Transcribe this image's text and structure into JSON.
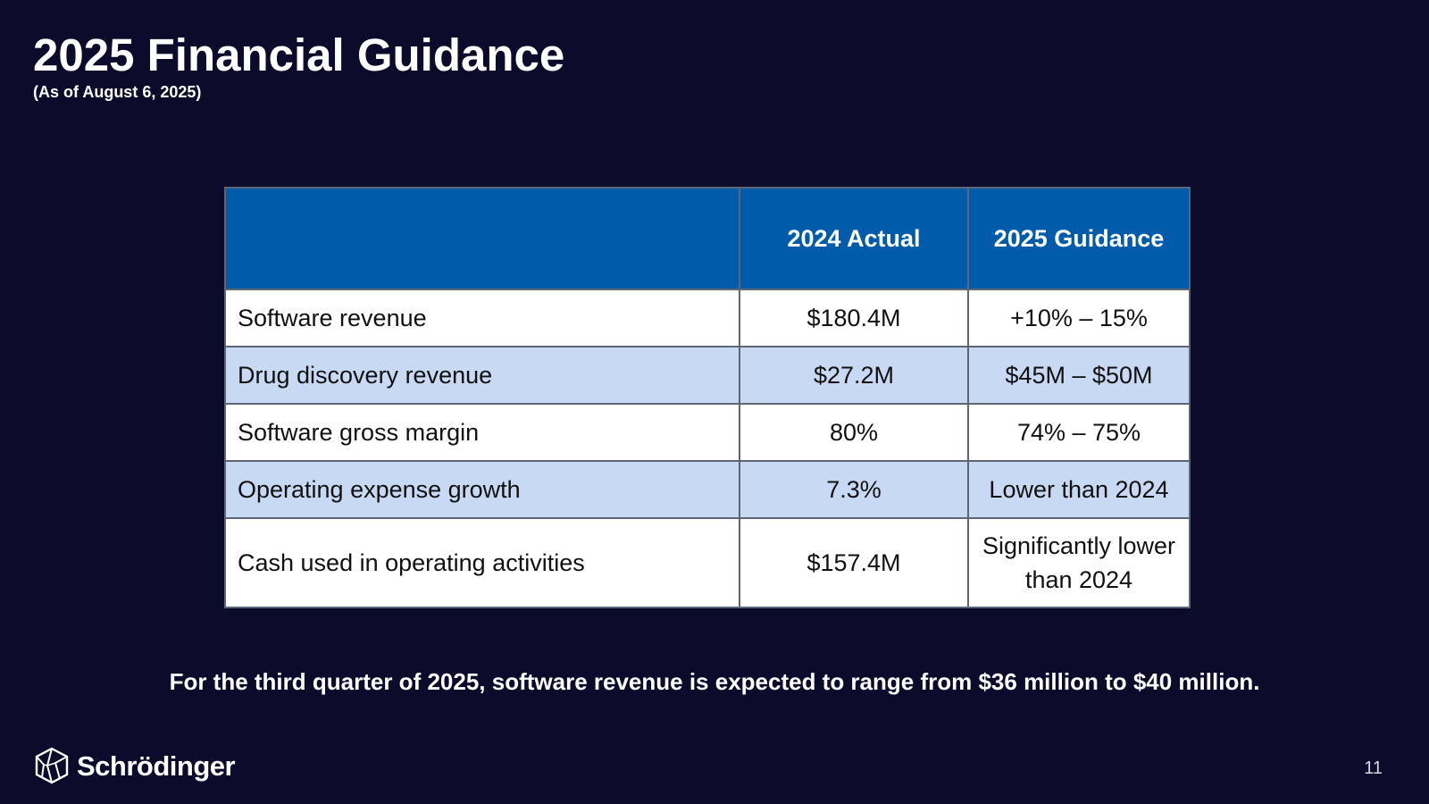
{
  "slide": {
    "title": "2025 Financial Guidance",
    "subtitle": "(As of August 6, 2025)",
    "footnote": "For the third quarter of 2025, software revenue is expected to range from $36 million to $40 million.",
    "page_number": "11"
  },
  "table": {
    "headers": [
      "",
      "2024 Actual",
      "2025 Guidance"
    ],
    "rows": [
      {
        "metric": "Software revenue",
        "actual": "$180.4M",
        "guidance": "+10% – 15%"
      },
      {
        "metric": "Drug discovery revenue",
        "actual": "$27.2M",
        "guidance": "$45M – $50M"
      },
      {
        "metric": "Software gross margin",
        "actual": "80%",
        "guidance": "74% – 75%"
      },
      {
        "metric": "Operating expense growth",
        "actual": "7.3%",
        "guidance": "Lower than 2024"
      },
      {
        "metric": "Cash used in operating activities",
        "actual": "$157.4M",
        "guidance": "Significantly lower than 2024"
      }
    ]
  },
  "brand": {
    "name": "Schrödinger",
    "logo_icon": "schrodinger-logo-icon"
  },
  "colors": {
    "background": "#0d0b2b",
    "header": "#005baa",
    "row_alt": "#c8d9f4"
  }
}
